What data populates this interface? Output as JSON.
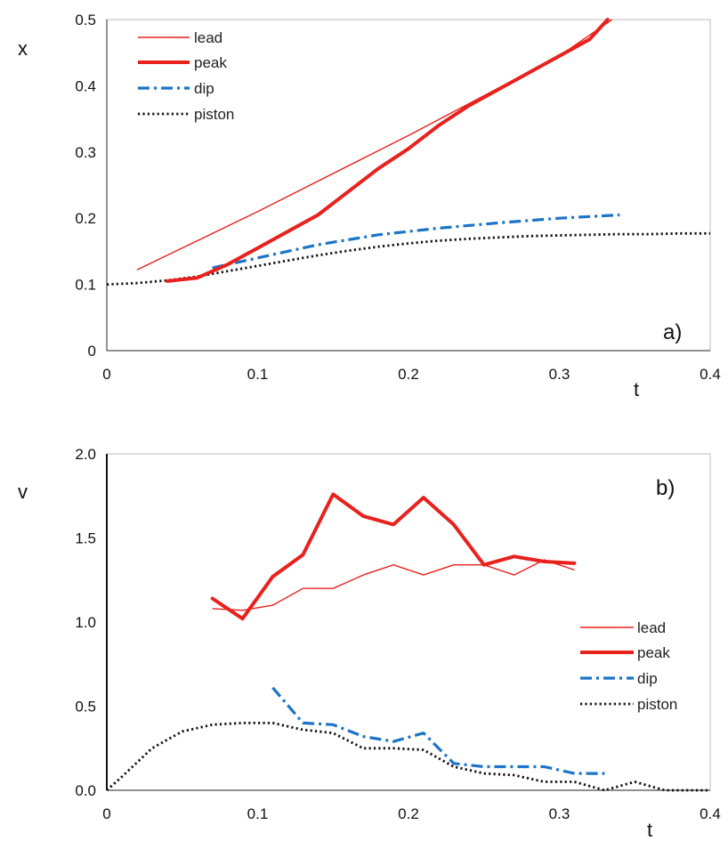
{
  "chart_data": [
    {
      "type": "line",
      "panel_label": "a)",
      "xlabel": "t",
      "ylabel": "x",
      "xlim": [
        0,
        0.4
      ],
      "ylim": [
        0,
        0.5
      ],
      "xticks": [
        "0",
        "0.1",
        "0.2",
        "0.3",
        "0.4"
      ],
      "yticks": [
        "0",
        "0.1",
        "0.2",
        "0.3",
        "0.4",
        "0.5"
      ],
      "grid": false,
      "legend_position": "top-left",
      "series": [
        {
          "name": "lead",
          "color": "#e8211d",
          "style": "thin",
          "x": [
            0.02,
            0.1,
            0.2,
            0.3,
            0.335
          ],
          "y": [
            0.122,
            0.21,
            0.325,
            0.445,
            0.5
          ]
        },
        {
          "name": "peak",
          "color": "#e8211d",
          "style": "thick",
          "x": [
            0.04,
            0.06,
            0.08,
            0.1,
            0.12,
            0.14,
            0.16,
            0.18,
            0.2,
            0.22,
            0.24,
            0.26,
            0.28,
            0.3,
            0.32,
            0.332
          ],
          "y": [
            0.105,
            0.11,
            0.13,
            0.155,
            0.18,
            0.205,
            0.24,
            0.275,
            0.305,
            0.34,
            0.37,
            0.395,
            0.42,
            0.445,
            0.47,
            0.5
          ]
        },
        {
          "name": "dip",
          "color": "#1c74c7",
          "style": "dashdot",
          "x": [
            0.07,
            0.1,
            0.14,
            0.18,
            0.22,
            0.26,
            0.3,
            0.34
          ],
          "y": [
            0.125,
            0.14,
            0.16,
            0.175,
            0.185,
            0.193,
            0.2,
            0.205
          ]
        },
        {
          "name": "piston",
          "color": "#111111",
          "style": "dotted",
          "x": [
            0,
            0.02,
            0.04,
            0.06,
            0.08,
            0.1,
            0.12,
            0.14,
            0.16,
            0.18,
            0.2,
            0.22,
            0.24,
            0.26,
            0.28,
            0.3,
            0.32,
            0.34,
            0.36,
            0.38,
            0.4
          ],
          "y": [
            0.1,
            0.102,
            0.106,
            0.112,
            0.12,
            0.128,
            0.136,
            0.144,
            0.151,
            0.157,
            0.162,
            0.166,
            0.169,
            0.171,
            0.173,
            0.174,
            0.175,
            0.176,
            0.176,
            0.177,
            0.177
          ]
        }
      ]
    },
    {
      "type": "line",
      "panel_label": "b)",
      "xlabel": "t",
      "ylabel": "v",
      "xlim": [
        0,
        0.4
      ],
      "ylim": [
        0,
        2.0
      ],
      "xticks": [
        "0",
        "0.1",
        "0.2",
        "0.3",
        "0.4"
      ],
      "yticks": [
        "0.0",
        "0.5",
        "1.0",
        "1.5",
        "2.0"
      ],
      "grid": false,
      "legend_position": "bottom-right",
      "series": [
        {
          "name": "lead",
          "color": "#e8211d",
          "style": "thin",
          "x": [
            0.07,
            0.09,
            0.11,
            0.13,
            0.15,
            0.17,
            0.19,
            0.21,
            0.23,
            0.25,
            0.27,
            0.29,
            0.31
          ],
          "y": [
            1.08,
            1.07,
            1.1,
            1.2,
            1.2,
            1.28,
            1.34,
            1.28,
            1.34,
            1.34,
            1.28,
            1.37,
            1.31
          ]
        },
        {
          "name": "peak",
          "color": "#e8211d",
          "style": "thick",
          "x": [
            0.07,
            0.09,
            0.11,
            0.13,
            0.15,
            0.17,
            0.19,
            0.21,
            0.23,
            0.25,
            0.27,
            0.29,
            0.31
          ],
          "y": [
            1.14,
            1.02,
            1.27,
            1.4,
            1.76,
            1.63,
            1.58,
            1.74,
            1.58,
            1.34,
            1.39,
            1.36,
            1.35
          ]
        },
        {
          "name": "dip",
          "color": "#1c74c7",
          "style": "dashdot",
          "x": [
            0.11,
            0.13,
            0.15,
            0.17,
            0.19,
            0.21,
            0.23,
            0.25,
            0.27,
            0.29,
            0.31,
            0.33
          ],
          "y": [
            0.61,
            0.4,
            0.39,
            0.32,
            0.29,
            0.34,
            0.16,
            0.14,
            0.14,
            0.14,
            0.1,
            0.1
          ]
        },
        {
          "name": "piston",
          "color": "#111111",
          "style": "dotted",
          "x": [
            0,
            0.01,
            0.03,
            0.05,
            0.07,
            0.09,
            0.11,
            0.13,
            0.15,
            0.17,
            0.19,
            0.21,
            0.23,
            0.25,
            0.27,
            0.29,
            0.31,
            0.33,
            0.35,
            0.37,
            0.39,
            0.4
          ],
          "y": [
            0,
            0.08,
            0.25,
            0.35,
            0.39,
            0.4,
            0.4,
            0.36,
            0.34,
            0.25,
            0.25,
            0.24,
            0.14,
            0.1,
            0.09,
            0.05,
            0.05,
            0.0,
            0.05,
            0.0,
            0.0,
            0.0
          ]
        }
      ]
    }
  ]
}
